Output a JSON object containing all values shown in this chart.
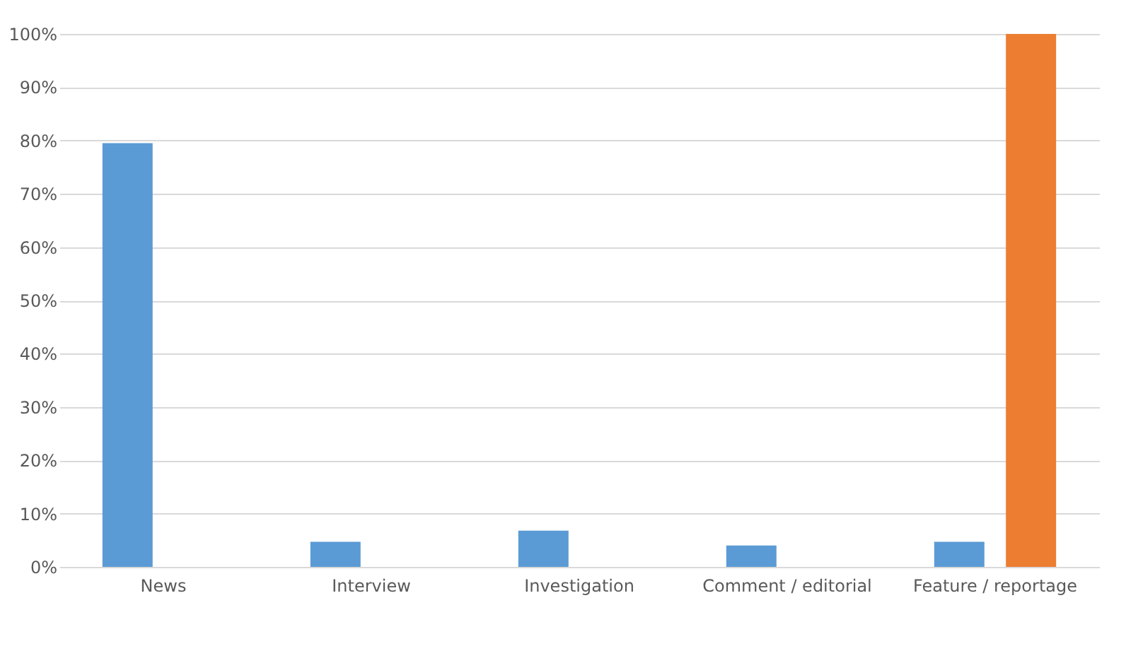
{
  "chart_data": {
    "type": "bar",
    "categories": [
      "News",
      "Interview",
      "Investigation",
      "Comment / editorial",
      "Feature / reportage"
    ],
    "series": [
      {
        "color": "#5b9bd5",
        "values": [
          79.5,
          4.7,
          6.8,
          4.0,
          4.7
        ]
      },
      {
        "color": "#ed7d31",
        "values": [
          0,
          0,
          0,
          0,
          100
        ]
      }
    ],
    "ylim": [
      0,
      100
    ],
    "yticks": [
      {
        "value": 0,
        "label": "0%"
      },
      {
        "value": 10,
        "label": "10%"
      },
      {
        "value": 20,
        "label": "20%"
      },
      {
        "value": 30,
        "label": "30%"
      },
      {
        "value": 40,
        "label": "40%"
      },
      {
        "value": 50,
        "label": "50%"
      },
      {
        "value": 60,
        "label": "60%"
      },
      {
        "value": 70,
        "label": "70%"
      },
      {
        "value": 80,
        "label": "80%"
      },
      {
        "value": 90,
        "label": "90%"
      },
      {
        "value": 100,
        "label": "100%"
      }
    ],
    "grid": "y"
  }
}
